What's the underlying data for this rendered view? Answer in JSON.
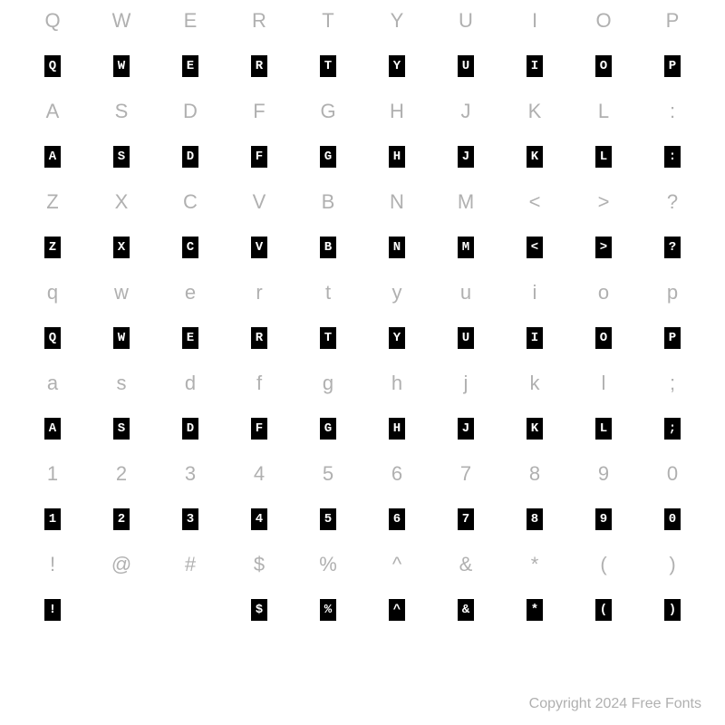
{
  "chart": {
    "type": "font-specimen-grid",
    "columns": 10,
    "background_color": "#ffffff",
    "reference_char_color": "#b0b0b0",
    "reference_char_fontsize": 22,
    "glyph_bg_color": "#000000",
    "glyph_fg_color": "#ffffff",
    "glyph_fontsize": 14,
    "glyph_box_width": 18,
    "glyph_box_height": 24,
    "rows": [
      {
        "kind": "ref",
        "chars": [
          "Q",
          "W",
          "E",
          "R",
          "T",
          "Y",
          "U",
          "I",
          "O",
          "P"
        ]
      },
      {
        "kind": "glyph",
        "chars": [
          "Q",
          "W",
          "E",
          "R",
          "T",
          "Y",
          "U",
          "I",
          "O",
          "P"
        ]
      },
      {
        "kind": "ref",
        "chars": [
          "A",
          "S",
          "D",
          "F",
          "G",
          "H",
          "J",
          "K",
          "L",
          ":"
        ]
      },
      {
        "kind": "glyph",
        "chars": [
          "A",
          "S",
          "D",
          "F",
          "G",
          "H",
          "J",
          "K",
          "L",
          ":"
        ]
      },
      {
        "kind": "ref",
        "chars": [
          "Z",
          "X",
          "C",
          "V",
          "B",
          "N",
          "M",
          "<",
          ">",
          "?"
        ]
      },
      {
        "kind": "glyph",
        "chars": [
          "Z",
          "X",
          "C",
          "V",
          "B",
          "N",
          "M",
          "<",
          ">",
          "?"
        ]
      },
      {
        "kind": "ref",
        "chars": [
          "q",
          "w",
          "e",
          "r",
          "t",
          "y",
          "u",
          "i",
          "o",
          "p"
        ]
      },
      {
        "kind": "glyph",
        "chars": [
          "Q",
          "W",
          "E",
          "R",
          "T",
          "Y",
          "U",
          "I",
          "O",
          "P"
        ]
      },
      {
        "kind": "ref",
        "chars": [
          "a",
          "s",
          "d",
          "f",
          "g",
          "h",
          "j",
          "k",
          "l",
          ";"
        ]
      },
      {
        "kind": "glyph",
        "chars": [
          "A",
          "S",
          "D",
          "F",
          "G",
          "H",
          "J",
          "K",
          "L",
          ";"
        ]
      },
      {
        "kind": "ref",
        "chars": [
          "1",
          "2",
          "3",
          "4",
          "5",
          "6",
          "7",
          "8",
          "9",
          "0"
        ]
      },
      {
        "kind": "glyph",
        "chars": [
          "1",
          "2",
          "3",
          "4",
          "5",
          "6",
          "7",
          "8",
          "9",
          "0"
        ]
      },
      {
        "kind": "ref",
        "chars": [
          "!",
          "@",
          "#",
          "$",
          "%",
          "^",
          "&",
          "*",
          "(",
          ")"
        ]
      },
      {
        "kind": "glyph",
        "chars": [
          "!",
          "",
          "",
          "$",
          "%",
          "^",
          "&",
          "*",
          "(",
          ")"
        ]
      }
    ]
  },
  "copyright": "Copyright 2024 Free Fonts"
}
